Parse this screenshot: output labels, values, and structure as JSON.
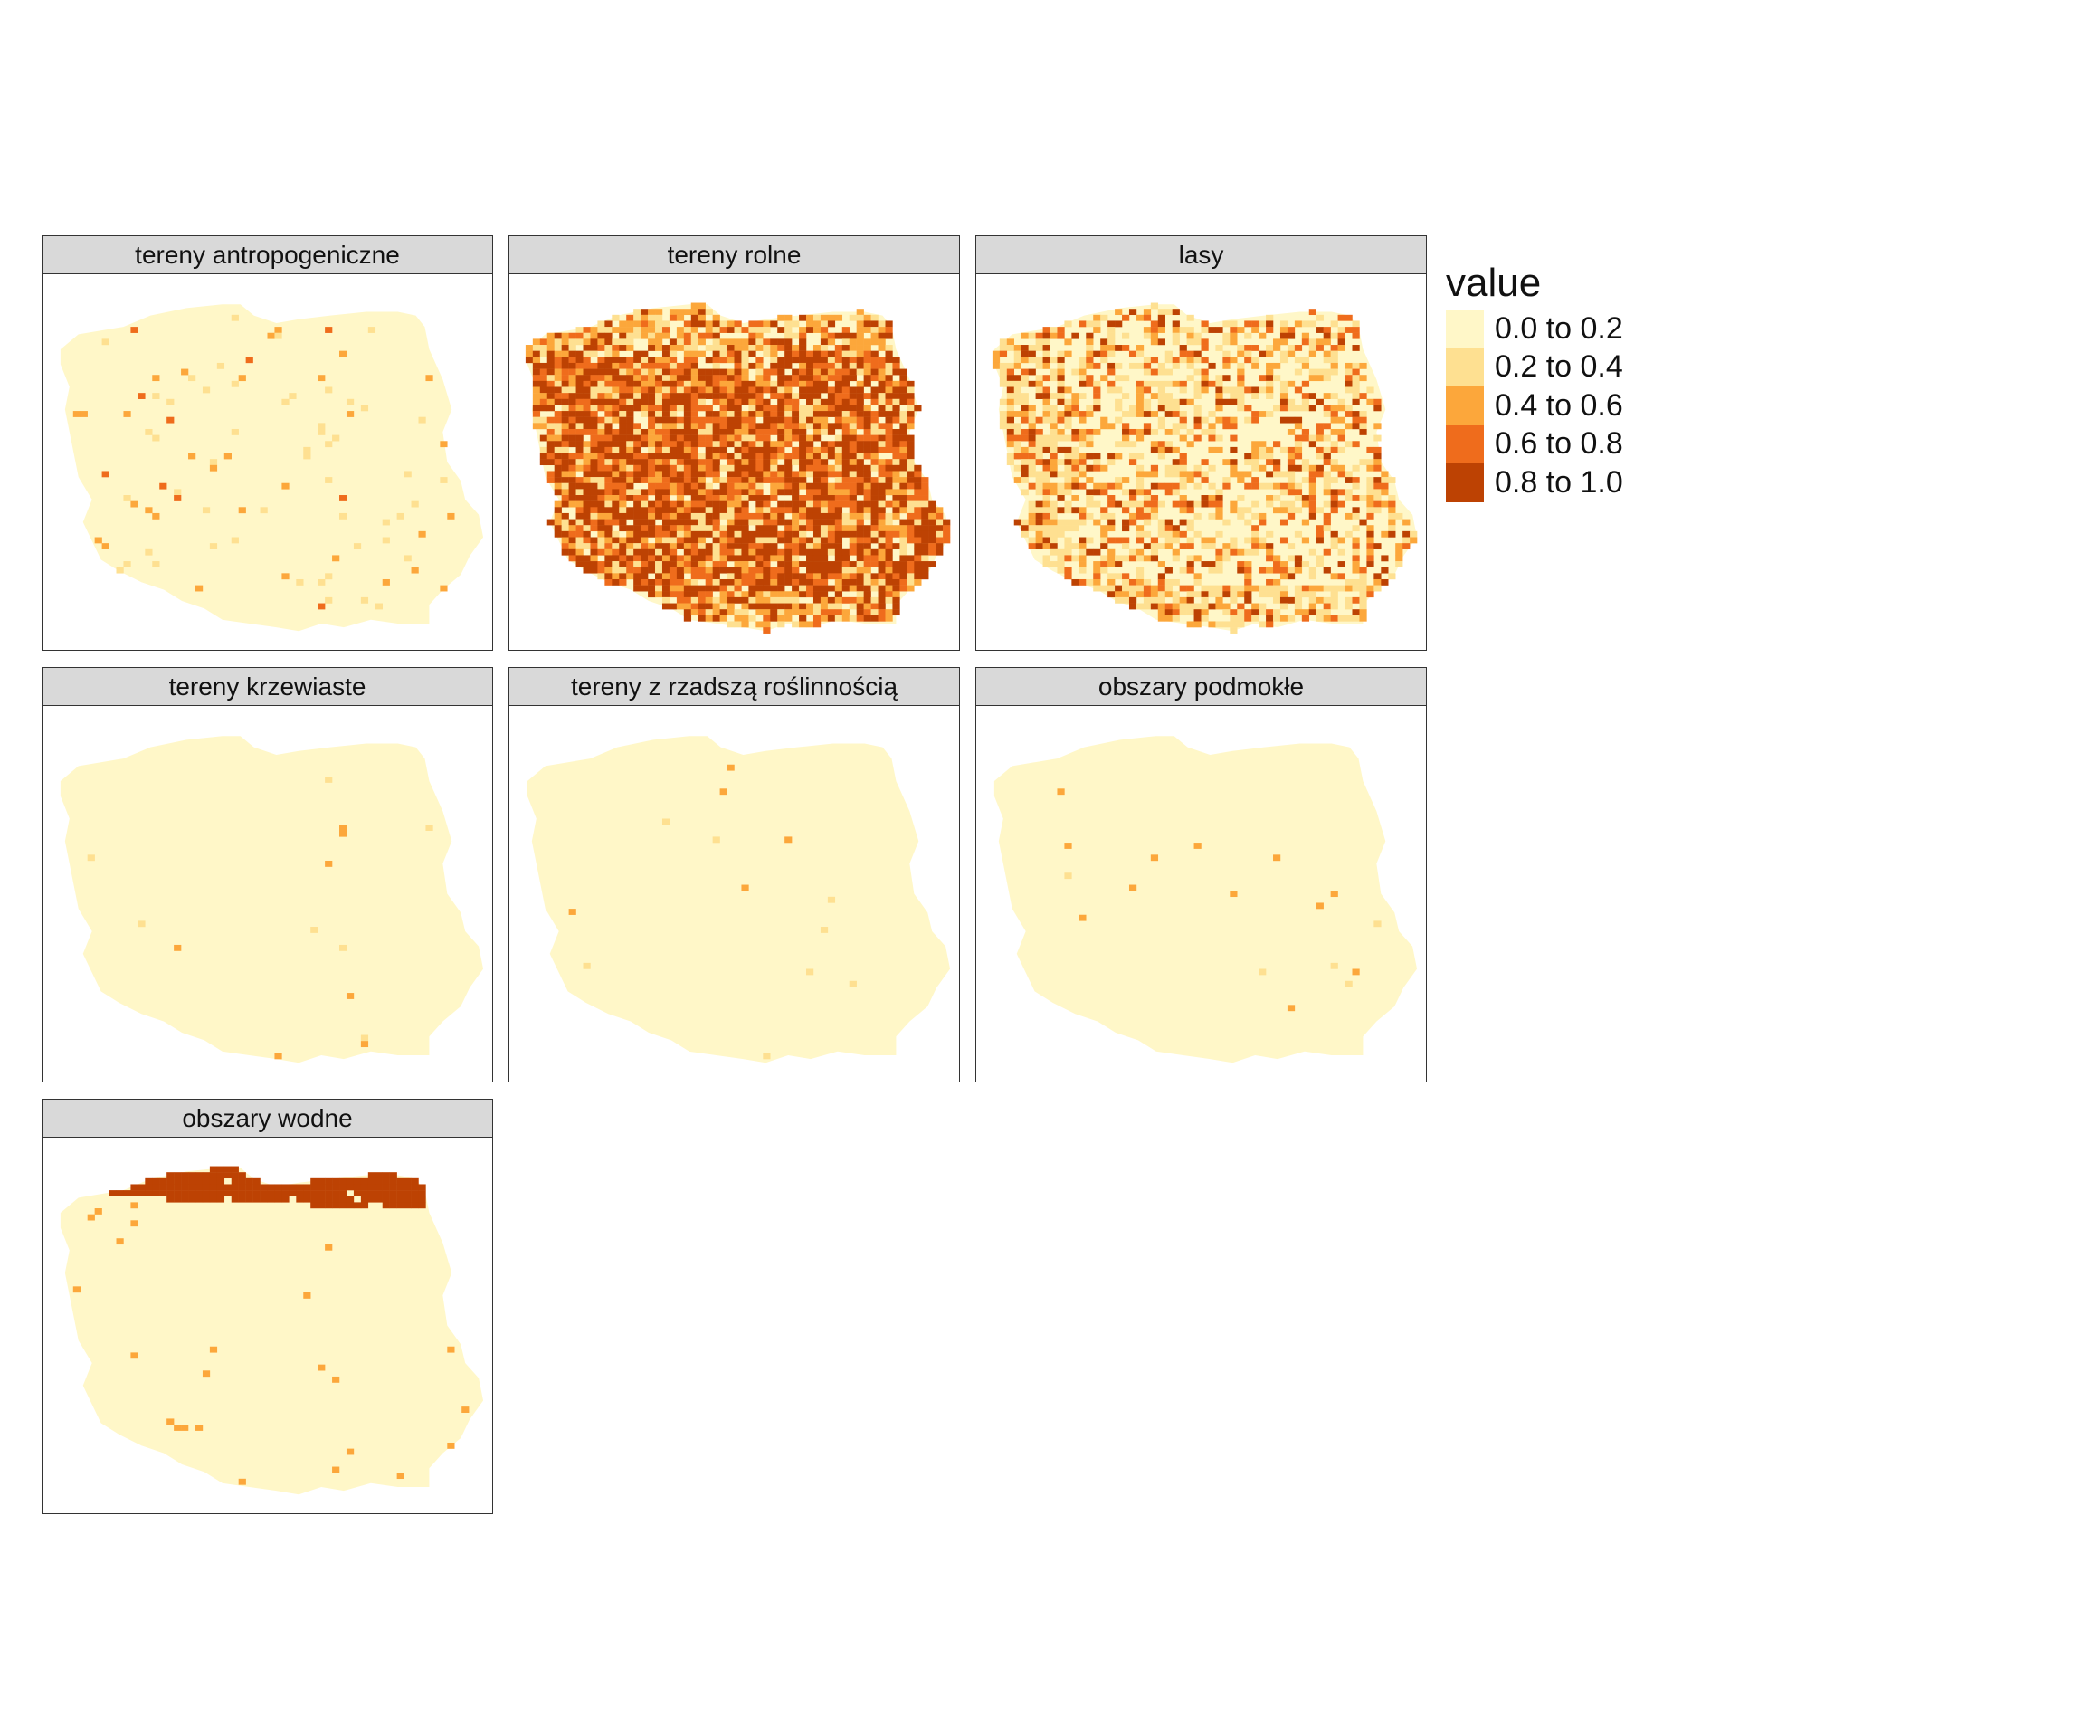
{
  "map_data": {
    "legend": {
      "title": "value",
      "classes": [
        {
          "label": "0.0 to 0.2",
          "color": "#fff7c8"
        },
        {
          "label": "0.2 to 0.4",
          "color": "#fee091"
        },
        {
          "label": "0.4 to 0.6",
          "color": "#fca73b"
        },
        {
          "label": "0.6 to 0.8",
          "color": "#ef6c1c"
        },
        {
          "label": "0.8 to 1.0",
          "color": "#bd4203"
        }
      ]
    },
    "panels": [
      {
        "title": "tereny antropogeniczne",
        "pattern": "sparse-urban"
      },
      {
        "title": "tereny rolne",
        "pattern": "dense-agriculture"
      },
      {
        "title": "lasy",
        "pattern": "mixed-forest"
      },
      {
        "title": "tereny krzewiaste",
        "pattern": "near-zero"
      },
      {
        "title": "tereny z rzadszą roślinnością",
        "pattern": "near-zero"
      },
      {
        "title": "obszary podmokłe",
        "pattern": "near-zero"
      },
      {
        "title": "obszary wodne",
        "pattern": "coastal-water"
      }
    ]
  }
}
